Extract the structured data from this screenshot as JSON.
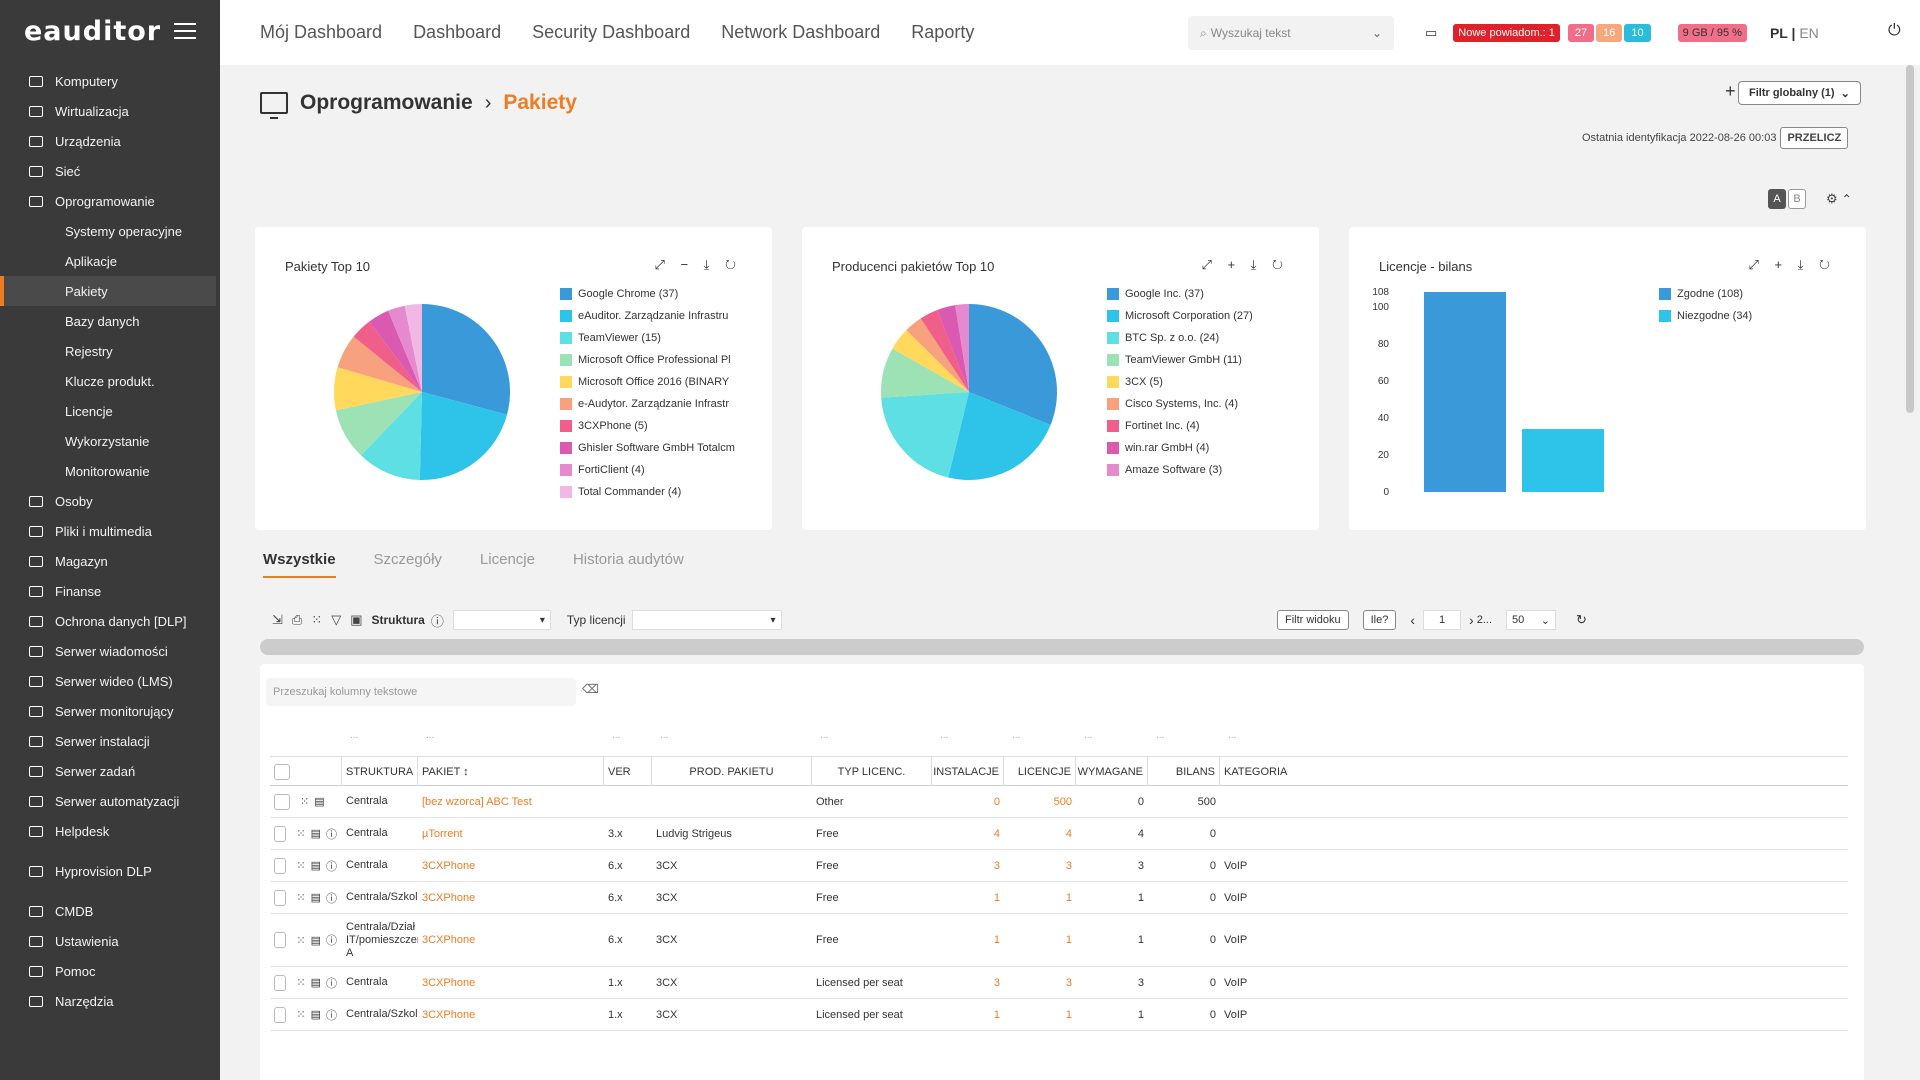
{
  "brand": {
    "logo": "eauditor"
  },
  "sidebar": {
    "items": [
      {
        "label": "Komputery",
        "icon": "monitor-icon",
        "sub": false
      },
      {
        "label": "Wirtualizacja",
        "icon": "server-icon",
        "sub": false
      },
      {
        "label": "Urządzenia",
        "icon": "devices-icon",
        "sub": false
      },
      {
        "label": "Sieć",
        "icon": "network-icon",
        "sub": false
      },
      {
        "label": "Oprogramowanie",
        "icon": "monitor-icon",
        "sub": false
      },
      {
        "label": "Systemy operacyjne",
        "sub": true
      },
      {
        "label": "Aplikacje",
        "sub": true
      },
      {
        "label": "Pakiety",
        "sub": true,
        "active": true
      },
      {
        "label": "Bazy danych",
        "sub": true
      },
      {
        "label": "Rejestry",
        "sub": true
      },
      {
        "label": "Klucze produkt.",
        "sub": true
      },
      {
        "label": "Licencje",
        "sub": true
      },
      {
        "label": "Wykorzystanie",
        "sub": true
      },
      {
        "label": "Monitorowanie",
        "sub": true
      },
      {
        "label": "Osoby",
        "icon": "people-icon",
        "sub": false
      },
      {
        "label": "Pliki i multimedia",
        "icon": "file-icon",
        "sub": false
      },
      {
        "label": "Magazyn",
        "icon": "warehouse-icon",
        "sub": false
      },
      {
        "label": "Finanse",
        "icon": "finance-icon",
        "sub": false
      },
      {
        "label": "Ochrona danych [DLP]",
        "icon": "shield-icon",
        "sub": false
      },
      {
        "label": "Serwer wiadomości",
        "icon": "mail-icon",
        "sub": false
      },
      {
        "label": "Serwer wideo (LMS)",
        "icon": "video-icon",
        "sub": false
      },
      {
        "label": "Serwer monitorujący",
        "icon": "monitor-screen-icon",
        "sub": false
      },
      {
        "label": "Serwer instalacji",
        "icon": "install-icon",
        "sub": false
      },
      {
        "label": "Serwer zadań",
        "icon": "tasks-icon",
        "sub": false
      },
      {
        "label": "Serwer automatyzacji",
        "icon": "automation-icon",
        "sub": false
      },
      {
        "label": "Helpdesk",
        "icon": "helpdesk-icon",
        "sub": false
      },
      {
        "label": "Hyprovision DLP",
        "icon": "user-key-icon",
        "sub": false,
        "gap": true
      },
      {
        "label": "CMDB",
        "icon": "database-icon",
        "sub": false,
        "gap": true
      },
      {
        "label": "Ustawienia",
        "icon": "gear-icon",
        "sub": false
      },
      {
        "label": "Pomoc",
        "icon": "help-icon",
        "sub": false
      },
      {
        "label": "Narzędzia",
        "icon": "tools-icon",
        "sub": false
      }
    ]
  },
  "topnav": [
    "Mój Dashboard",
    "Dashboard",
    "Security Dashboard",
    "Network Dashboard",
    "Raporty"
  ],
  "search": {
    "placeholder": "Wyszukaj tekst"
  },
  "notifications": {
    "new_label": "Nowe powiadom.: 1",
    "counts": [
      {
        "value": "27",
        "color": "#f06e87"
      },
      {
        "value": "16",
        "color": "#f6a87d"
      },
      {
        "value": "10",
        "color": "#2bbcdc"
      }
    ],
    "storage": "9 GB / 95 %",
    "lang_pl": "PL",
    "lang_en": "EN"
  },
  "page": {
    "crumb1": "Oprogramowanie",
    "crumb2": "Pakiety",
    "filter_global": "Filtr globalny (1)",
    "last_ident": "Ostatnia identyfikacja 2022-08-26 00:03",
    "recalc": "PRZELICZ",
    "toggle_a": "A",
    "toggle_b": "B"
  },
  "charts": [
    {
      "title": "Pakiety Top 10",
      "type": "pie",
      "tools": "⤢ − ⤓ ↻",
      "legend": [
        {
          "label": "Google Chrome (37)",
          "value": 37,
          "color": "#3a9ad9"
        },
        {
          "label": "eAuditor. Zarządzanie Infrastru",
          "value": 27,
          "color": "#2ec4ea"
        },
        {
          "label": "TeamViewer (15)",
          "value": 15,
          "color": "#5ddfe3"
        },
        {
          "label": "Microsoft Office Professional Pl",
          "value": 12,
          "color": "#9ce2b5"
        },
        {
          "label": "Microsoft Office 2016 (BINARY",
          "value": 10,
          "color": "#ffd85c"
        },
        {
          "label": "e-Audytor. Zarządzanie Infrastr",
          "value": 8,
          "color": "#f8a17e"
        },
        {
          "label": "3CXPhone (5)",
          "value": 5,
          "color": "#f05e8a"
        },
        {
          "label": "Ghisler Software GmbH Totalcm",
          "value": 5,
          "color": "#d95ab0"
        },
        {
          "label": "FortiClient (4)",
          "value": 4,
          "color": "#e68ad0"
        },
        {
          "label": "Total Commander (4)",
          "value": 4,
          "color": "#f1b8e6"
        }
      ]
    },
    {
      "title": "Producenci pakietów Top 10",
      "type": "pie",
      "tools": "⤢ + ⤓ ↻",
      "legend": [
        {
          "label": "Google Inc. (37)",
          "value": 37,
          "color": "#3a9ad9"
        },
        {
          "label": "Microsoft Corporation (27)",
          "value": 27,
          "color": "#2ec4ea"
        },
        {
          "label": "BTC Sp. z o.o. (24)",
          "value": 24,
          "color": "#5ddfe3"
        },
        {
          "label": "TeamViewer GmbH (11)",
          "value": 11,
          "color": "#9ce2b5"
        },
        {
          "label": "3CX (5)",
          "value": 5,
          "color": "#ffd85c"
        },
        {
          "label": "Cisco Systems, Inc. (4)",
          "value": 4,
          "color": "#f8a17e"
        },
        {
          "label": "Fortinet Inc. (4)",
          "value": 4,
          "color": "#f05e8a"
        },
        {
          "label": "win.rar GmbH (4)",
          "value": 4,
          "color": "#d95ab0"
        },
        {
          "label": "Amaze Software (3)",
          "value": 3,
          "color": "#e68ad0"
        }
      ]
    }
  ],
  "chart_data": {
    "type": "bar",
    "title": "Licencje - bilans",
    "tools": "⤢ + ⤓ ↻",
    "categories": [
      "Zgodne (108)",
      "Niezgodne (34)"
    ],
    "values": [
      108,
      34
    ],
    "colors": [
      "#3a9ad9",
      "#2ec4ea"
    ],
    "yticks": [
      "108",
      "100",
      "80",
      "60",
      "40",
      "20",
      "0"
    ],
    "ylim": [
      0,
      108
    ]
  },
  "tabs": [
    "Wszystkie",
    "Szczegóły",
    "Licencje",
    "Historia audytów"
  ],
  "toolbar": {
    "struktura_label": "Struktura",
    "typ_licencji_label": "Typ licencji",
    "filtr_widoku": "Filtr widoku",
    "ile": "Ile?",
    "page_value": "1",
    "next_pages": "2...",
    "per_page": "50"
  },
  "table": {
    "search_placeholder": "Przeszukaj kolumny tekstowe",
    "headers": [
      "STRUKTURA",
      "PAKIET ↕",
      "VER",
      "PROD. PAKIETU",
      "TYP LICENC.",
      "INSTALACJE",
      "LICENCJE",
      "WYMAGANE",
      "BILANS",
      "KATEGORIA"
    ],
    "rows": [
      {
        "struktura": "Centrala",
        "pakiet": "[bez wzorca] ABC Test",
        "ver": "",
        "prod": "",
        "typ": "Other",
        "inst": "0",
        "lic": "500",
        "wym": "0",
        "bil": "500",
        "kat": "",
        "tall": false,
        "info": false
      },
      {
        "struktura": "Centrala",
        "pakiet": "µTorrent",
        "ver": "3.x",
        "prod": "Ludvig Strigeus",
        "typ": "Free",
        "inst": "4",
        "lic": "4",
        "wym": "4",
        "bil": "0",
        "kat": "",
        "tall": false,
        "info": true
      },
      {
        "struktura": "Centrala",
        "pakiet": "3CXPhone",
        "ver": "6.x",
        "prod": "3CX",
        "typ": "Free",
        "inst": "3",
        "lic": "3",
        "wym": "3",
        "bil": "0",
        "kat": "VoIP",
        "tall": false,
        "info": true
      },
      {
        "struktura": "Centrala/Szkoleni",
        "pakiet": "3CXPhone",
        "ver": "6.x",
        "prod": "3CX",
        "typ": "Free",
        "inst": "1",
        "lic": "1",
        "wym": "1",
        "bil": "0",
        "kat": "VoIP",
        "tall": false,
        "info": true
      },
      {
        "struktura": "Centrala/Dział IT/pomieszczenie A",
        "pakiet": "3CXPhone",
        "ver": "6.x",
        "prod": "3CX",
        "typ": "Free",
        "inst": "1",
        "lic": "1",
        "wym": "1",
        "bil": "0",
        "kat": "VoIP",
        "tall": true,
        "info": true
      },
      {
        "struktura": "Centrala",
        "pakiet": "3CXPhone",
        "ver": "1.x",
        "prod": "3CX",
        "typ": "Licensed per seat",
        "inst": "3",
        "lic": "3",
        "wym": "3",
        "bil": "0",
        "kat": "VoIP",
        "tall": false,
        "info": true
      },
      {
        "struktura": "Centrala/Szkoleni",
        "pakiet": "3CXPhone",
        "ver": "1.x",
        "prod": "3CX",
        "typ": "Licensed per seat",
        "inst": "1",
        "lic": "1",
        "wym": "1",
        "bil": "0",
        "kat": "VoIP",
        "tall": false,
        "info": true
      }
    ]
  }
}
